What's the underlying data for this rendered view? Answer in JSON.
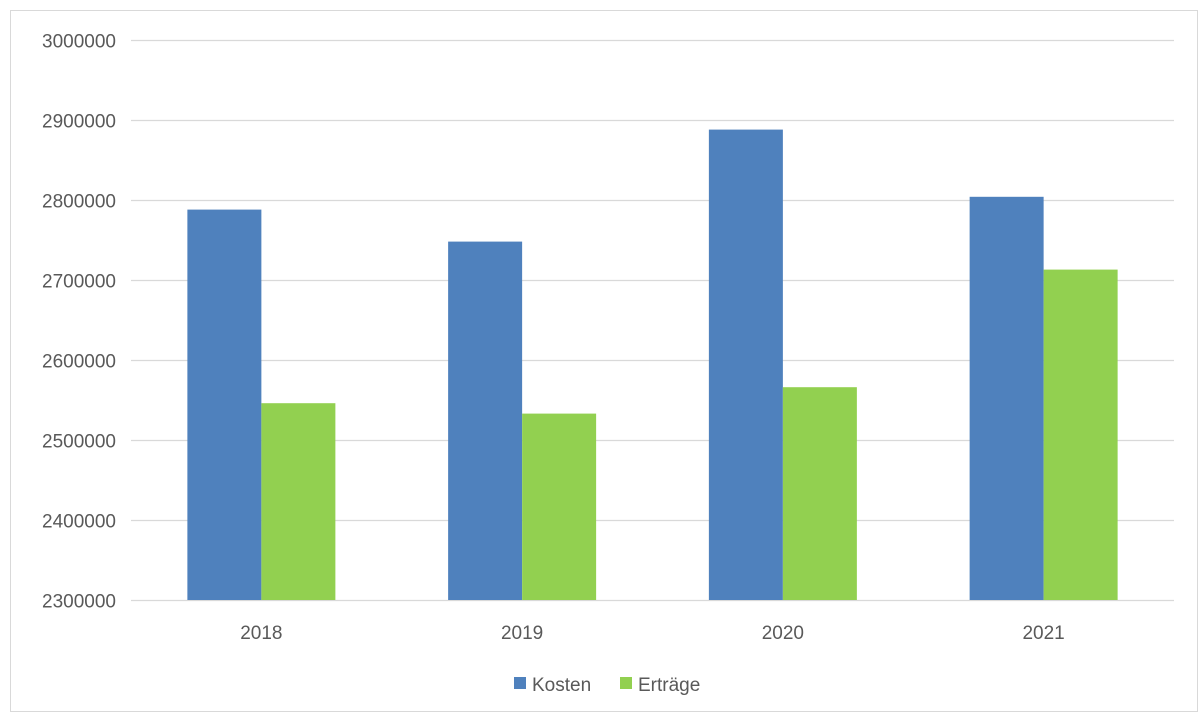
{
  "chart_data": {
    "type": "bar",
    "categories": [
      "2018",
      "2019",
      "2020",
      "2021"
    ],
    "series": [
      {
        "name": "Kosten",
        "values": [
          2788000,
          2748000,
          2888000,
          2804000
        ],
        "color": "#4f81bd"
      },
      {
        "name": "Erträge",
        "values": [
          2546000,
          2533000,
          2566000,
          2713000
        ],
        "color": "#92d050"
      }
    ],
    "title": "",
    "xlabel": "",
    "ylabel": "",
    "ylim": [
      2300000,
      3000000
    ],
    "ytick_step": 100000,
    "grid": true,
    "gridline_color": "#d9d9d9",
    "legend": "bottom"
  }
}
